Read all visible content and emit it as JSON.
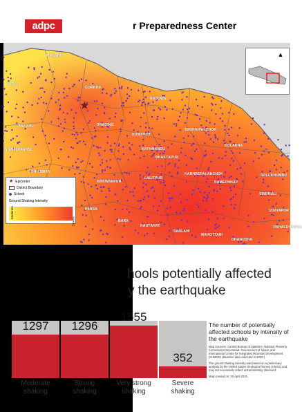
{
  "header": {
    "logo_text": "adpc",
    "title": "r Preparedness Center"
  },
  "map": {
    "places": [
      {
        "name": "MANANG"
      },
      {
        "name": "KASKI"
      },
      {
        "name": "GORKHA"
      },
      {
        "name": "RASUWA"
      },
      {
        "name": "TANAHU"
      },
      {
        "name": "DHADING"
      },
      {
        "name": "NUWAKOT"
      },
      {
        "name": "SINDHUPALCHOK"
      },
      {
        "name": "NAWALPARASI"
      },
      {
        "name": "KATHMANDU"
      },
      {
        "name": "BHAKTAPUR"
      },
      {
        "name": "DOLAKHA"
      },
      {
        "name": "CHITAWAN"
      },
      {
        "name": "MAKWANPUR"
      },
      {
        "name": "LALITPUR"
      },
      {
        "name": "KABHREPALANCHOK"
      },
      {
        "name": "RAMECHHAP"
      },
      {
        "name": "SOLUKHUMBU"
      },
      {
        "name": "SINDHULI"
      },
      {
        "name": "PARSA"
      },
      {
        "name": "BARA"
      },
      {
        "name": "RAUTAHAT"
      },
      {
        "name": "SARLAHI"
      },
      {
        "name": "MAHOTTARI"
      },
      {
        "name": "DHANUSHA"
      },
      {
        "name": "OKHALDHUNGA"
      },
      {
        "name": "UDAYAPUR"
      }
    ],
    "legend": {
      "epicenter": "Epicenter",
      "district_boundary": "District Boundary",
      "school": "School",
      "intensity_title": "Ground Shaking Intensity",
      "moderate": "Moderate",
      "severe": "Severe"
    },
    "colors": {
      "epicenter": "#7a1a1a",
      "school": "#6b2cc0",
      "low": "#fff04a",
      "high": "#f03c2b"
    }
  },
  "headline": {
    "line1": "hools potentially affected",
    "line2": "y the earthquake"
  },
  "chart_data": {
    "type": "bar",
    "categories": [
      "Moderate shaking",
      "Strong shaking",
      "Very strong shaking",
      "Severe shaking"
    ],
    "values": [
      1297,
      1296,
      1555,
      352
    ],
    "ylim": [
      0,
      1555
    ],
    "bar_color": "#c8232c",
    "labels": [
      [
        "Moderate",
        "shaking"
      ],
      [
        "Strong",
        "shaking"
      ],
      [
        "Very strong",
        "shaking"
      ],
      [
        "Severe",
        "shaking"
      ]
    ]
  },
  "description": {
    "text": "The number of potentially affected schools by intensity of the earthquake",
    "sources": "Map Sources: Central Bureau of Statistics, National Planning Commission Secretariat, Government of Nepal, and International Centre for Integrated Mountain Development (ICIMOD) (Baseline data collected in 2009-)",
    "note": "The ground shaking intensity was based on a preliminary analysis by the United States Geological Survey (USGS) and may not necessarily reflect actual intensity observed.",
    "created": "Map created on: 30 April 2015."
  }
}
